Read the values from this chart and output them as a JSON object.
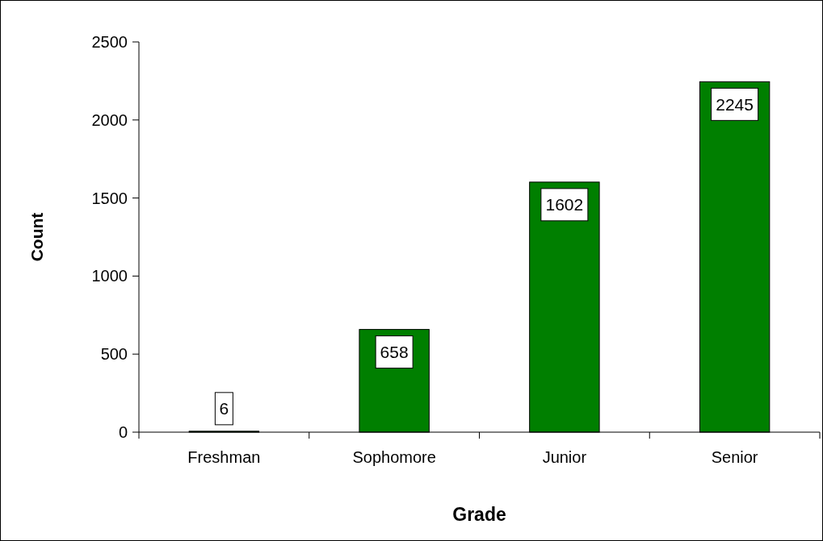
{
  "chart_data": {
    "type": "bar",
    "xlabel": "Grade",
    "ylabel": "Count",
    "categories": [
      "Freshman",
      "Sophomore",
      "Junior",
      "Senior"
    ],
    "values": [
      6,
      658,
      1602,
      2245
    ],
    "color": "#007f00",
    "ylim": [
      0,
      2500
    ],
    "yticks": [
      0,
      500,
      1000,
      1500,
      2000,
      2500
    ],
    "grid": false,
    "data_labels": true
  }
}
